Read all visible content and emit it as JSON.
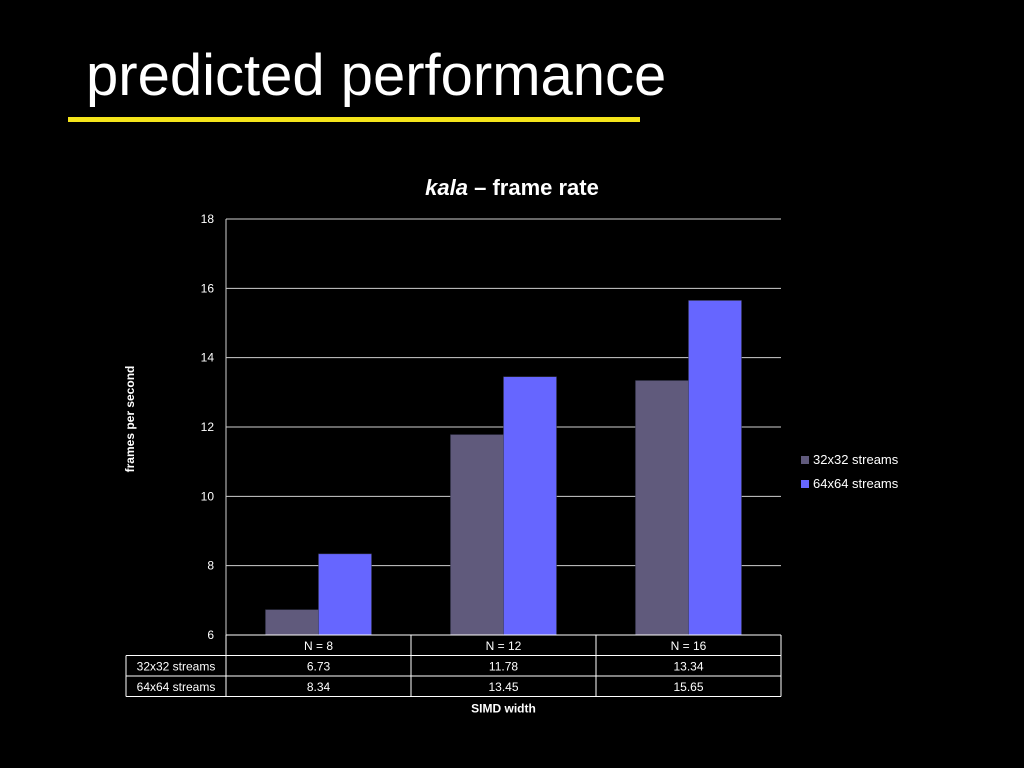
{
  "slide": {
    "title": "predicted performance",
    "accent_color": "#f5e51b"
  },
  "chart_data": {
    "type": "bar",
    "title_emphasis": "kala",
    "title_rest": " – frame rate",
    "xlabel": "SIMD width",
    "ylabel": "frames per second",
    "categories": [
      "N = 8",
      "N = 12",
      "N = 16"
    ],
    "ylim": [
      6,
      18
    ],
    "yticks": [
      "6",
      "8",
      "10",
      "12",
      "14",
      "16",
      "18"
    ],
    "grid": true,
    "legend_position": "right",
    "series": [
      {
        "name": "32x32 streams",
        "color": "#605a7c",
        "values": [
          6.73,
          11.78,
          13.34
        ],
        "labels": [
          "6.73",
          "11.78",
          "13.34"
        ]
      },
      {
        "name": "64x64 streams",
        "color": "#6666ff",
        "values": [
          8.34,
          13.45,
          15.65
        ],
        "labels": [
          "8.34",
          "13.45",
          "15.65"
        ]
      }
    ]
  }
}
